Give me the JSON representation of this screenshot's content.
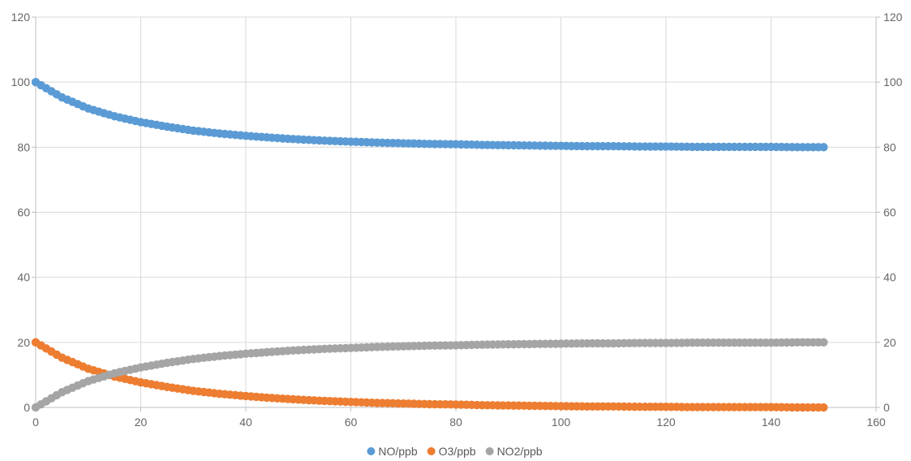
{
  "chart_data": {
    "type": "scatter",
    "title": "",
    "xlabel": "",
    "ylabel": "",
    "xlim": [
      0,
      160
    ],
    "ylim": [
      0,
      120
    ],
    "x_ticks": [
      0,
      20,
      40,
      60,
      80,
      100,
      120,
      140,
      160
    ],
    "y_ticks": [
      0,
      20,
      40,
      60,
      80,
      100,
      120
    ],
    "secondary_y_ticks": [
      0,
      20,
      40,
      60,
      80,
      100,
      120
    ],
    "grid": true,
    "legend_position": "bottom",
    "x": [
      0,
      5,
      10,
      15,
      20,
      25,
      30,
      35,
      40,
      45,
      50,
      55,
      60,
      65,
      70,
      75,
      80,
      85,
      90,
      95,
      100,
      105,
      110,
      115,
      120,
      125,
      130,
      135,
      140,
      145,
      150
    ],
    "series": [
      {
        "name": "NO/ppb",
        "color": "#5b9bd5",
        "values": [
          100.0,
          95.3,
          91.9,
          89.5,
          87.7,
          86.3,
          85.1,
          84.2,
          83.5,
          82.9,
          82.4,
          82.0,
          81.7,
          81.4,
          81.2,
          81.0,
          80.9,
          80.7,
          80.6,
          80.5,
          80.4,
          80.3,
          80.3,
          80.2,
          80.2,
          80.1,
          80.1,
          80.1,
          80.1,
          80.0,
          80.0
        ]
      },
      {
        "name": "O3/ppb",
        "color": "#ed7d31",
        "values": [
          20.0,
          15.3,
          11.9,
          9.5,
          7.7,
          6.3,
          5.1,
          4.2,
          3.5,
          2.9,
          2.4,
          2.0,
          1.7,
          1.4,
          1.2,
          1.0,
          0.9,
          0.7,
          0.6,
          0.5,
          0.4,
          0.3,
          0.3,
          0.2,
          0.2,
          0.1,
          0.1,
          0.1,
          0.1,
          0.0,
          0.0
        ]
      },
      {
        "name": "NO2/ppb",
        "color": "#a5a5a5",
        "values": [
          0.0,
          4.7,
          8.1,
          10.5,
          12.3,
          13.7,
          14.9,
          15.8,
          16.5,
          17.1,
          17.6,
          18.0,
          18.3,
          18.6,
          18.8,
          19.0,
          19.1,
          19.3,
          19.4,
          19.5,
          19.6,
          19.7,
          19.7,
          19.8,
          19.8,
          19.9,
          19.9,
          19.9,
          19.9,
          20.0,
          20.0
        ]
      }
    ]
  }
}
